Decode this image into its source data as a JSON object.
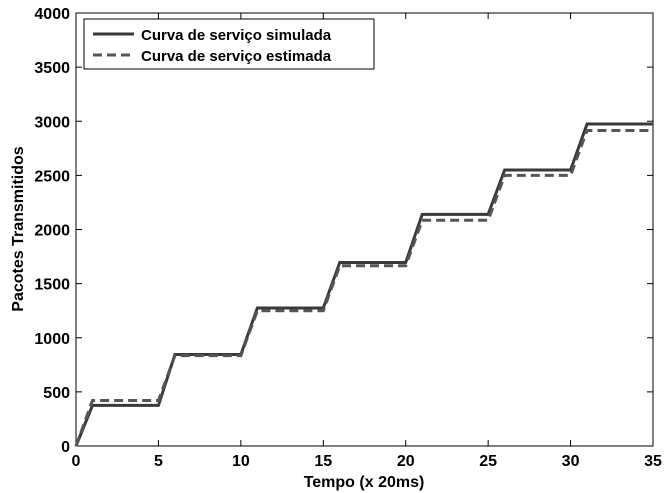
{
  "chart_data": {
    "type": "line",
    "title": "",
    "xlabel": "Tempo (x 20ms)",
    "ylabel": "Pacotes Transmitidos",
    "xlim": [
      0,
      35
    ],
    "ylim": [
      0,
      4000
    ],
    "xticks": [
      0,
      5,
      10,
      15,
      20,
      25,
      30,
      35
    ],
    "yticks": [
      0,
      500,
      1000,
      1500,
      2000,
      2500,
      3000,
      3500,
      4000
    ],
    "grid": false,
    "legend_position": "top-left",
    "series": [
      {
        "name": "Curva de serviço simulada",
        "style": "solid",
        "color": "#3a3a3a",
        "x": [
          0,
          1,
          5,
          6,
          10,
          11,
          15,
          16,
          20,
          21,
          25,
          26,
          30,
          31,
          35
        ],
        "y": [
          0,
          375,
          375,
          845,
          845,
          1275,
          1275,
          1695,
          1695,
          2140,
          2140,
          2550,
          2550,
          2975,
          2975
        ]
      },
      {
        "name": "Curva de serviço estimada",
        "style": "dashed",
        "color": "#555555",
        "x": [
          0,
          1,
          5,
          6,
          10,
          11,
          15,
          16,
          20,
          21,
          25,
          26,
          30,
          31,
          35
        ],
        "y": [
          0,
          420,
          420,
          835,
          835,
          1250,
          1250,
          1665,
          1665,
          2085,
          2085,
          2500,
          2500,
          2915,
          2915
        ]
      }
    ]
  }
}
